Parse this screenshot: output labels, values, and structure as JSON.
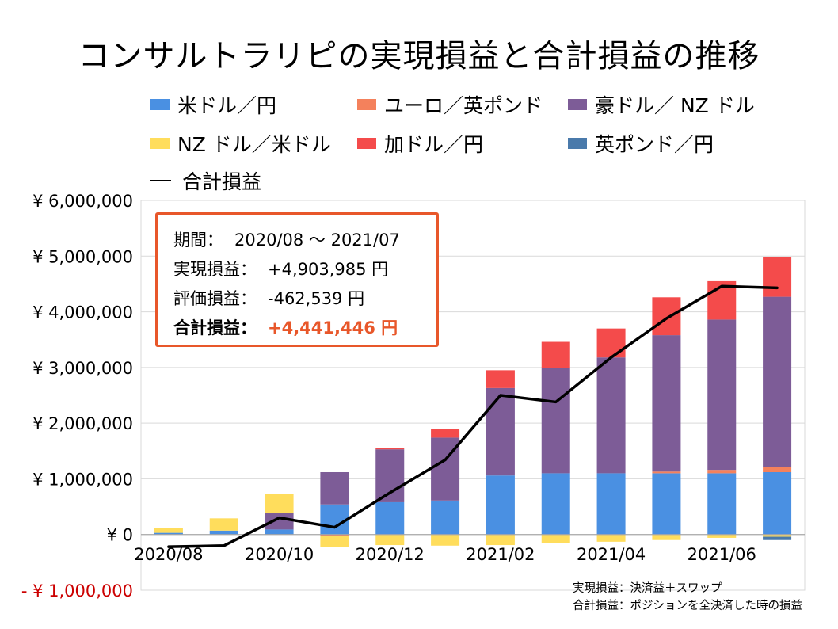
{
  "title": "コンサルトラリピの実現損益と合計損益の推移",
  "legend": [
    {
      "label": "米ドル／円",
      "color": "#4a90e2"
    },
    {
      "label": "ユーロ／英ポンド",
      "color": "#f4815c"
    },
    {
      "label": "豪ドル／ NZ ドル",
      "color": "#7d5c97"
    },
    {
      "label": "NZ ドル／米ドル",
      "color": "#ffdd5c"
    },
    {
      "label": "加ドル／円",
      "color": "#f44b4b"
    },
    {
      "label": "英ポンド／円",
      "color": "#4a7aab"
    },
    {
      "label": "合計損益",
      "color": "#000000"
    }
  ],
  "info_box": {
    "period_label": "期間：",
    "period_value": "2020/08 〜 2021/07",
    "realized_label": "実現損益：",
    "realized_value": "+4,903,985 円",
    "unrealized_label": "評価損益：",
    "unrealized_value": "-462,539 円",
    "total_label": "合計損益：",
    "total_value": "+4,441,446 円"
  },
  "notes": {
    "line1": "実現損益：決済益＋スワップ",
    "line2": "合計損益：ポジションを全決済した時の損益"
  },
  "chart_data": {
    "type": "bar",
    "stacked": true,
    "categories": [
      "2020/08",
      "2020/09",
      "2020/10",
      "2020/11",
      "2020/12",
      "2021/01",
      "2021/02",
      "2021/03",
      "2021/04",
      "2021/05",
      "2021/06",
      "2021/07"
    ],
    "x_tick_labels": [
      "2020/08",
      "",
      "2020/10",
      "",
      "2020/12",
      "",
      "2021/02",
      "",
      "2021/04",
      "",
      "2021/06",
      ""
    ],
    "y_ticks": [
      {
        "value": -1000000,
        "label": "- ¥ 1,000,000"
      },
      {
        "value": 0,
        "label": "¥ 0"
      },
      {
        "value": 1000000,
        "label": "¥ 1,000,000"
      },
      {
        "value": 2000000,
        "label": "¥ 2,000,000"
      },
      {
        "value": 3000000,
        "label": "¥ 3,000,000"
      },
      {
        "value": 4000000,
        "label": "¥ 4,000,000"
      },
      {
        "value": 5000000,
        "label": "¥ 5,000,000"
      },
      {
        "value": 6000000,
        "label": "¥ 6,000,000"
      }
    ],
    "ylim": [
      -1000000,
      6000000
    ],
    "grid": true,
    "legend_position": "top",
    "negative_tick_color": "#cc0000",
    "series": [
      {
        "name": "米ドル／円",
        "color": "#4a90e2",
        "values": [
          30000,
          70000,
          90000,
          540000,
          580000,
          610000,
          1060000,
          1100000,
          1100000,
          1100000,
          1100000,
          1120000
        ]
      },
      {
        "name": "ユーロ／英ポンド",
        "color": "#f4815c",
        "values": [
          0,
          0,
          0,
          -20000,
          0,
          0,
          0,
          0,
          0,
          30000,
          60000,
          90000
        ]
      },
      {
        "name": "豪ドル／ NZ ドル",
        "color": "#7d5c97",
        "values": [
          0,
          0,
          290000,
          580000,
          950000,
          1130000,
          1570000,
          1890000,
          2080000,
          2450000,
          2700000,
          3060000
        ]
      },
      {
        "name": "NZ ドル／米ドル",
        "color": "#ffdd5c",
        "values": [
          90000,
          220000,
          350000,
          -200000,
          -190000,
          -200000,
          -190000,
          -150000,
          -130000,
          -100000,
          -60000,
          -40000
        ]
      },
      {
        "name": "加ドル／円",
        "color": "#f44b4b",
        "values": [
          0,
          0,
          0,
          0,
          20000,
          160000,
          320000,
          470000,
          520000,
          680000,
          690000,
          720000
        ]
      },
      {
        "name": "英ポンド／円",
        "color": "#4a7aab",
        "values": [
          0,
          0,
          0,
          0,
          0,
          0,
          0,
          0,
          0,
          0,
          0,
          -60000
        ]
      }
    ],
    "line": {
      "name": "合計損益",
      "color": "#000000",
      "values": [
        -220000,
        -200000,
        300000,
        130000,
        750000,
        1340000,
        2500000,
        2380000,
        3180000,
        3880000,
        4460000,
        4430000
      ]
    }
  }
}
